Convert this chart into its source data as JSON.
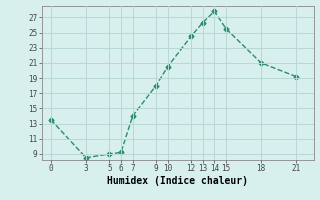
{
  "x": [
    0,
    3,
    5,
    6,
    7,
    9,
    10,
    12,
    13,
    14,
    15,
    18,
    21
  ],
  "y": [
    13.5,
    8.5,
    9.0,
    9.2,
    14.0,
    18.0,
    20.5,
    24.5,
    26.3,
    27.8,
    25.5,
    21.0,
    19.2
  ],
  "xlabel": "Humidex (Indice chaleur)",
  "xticks": [
    0,
    3,
    5,
    6,
    7,
    9,
    10,
    12,
    13,
    14,
    15,
    18,
    21
  ],
  "yticks": [
    9,
    11,
    13,
    15,
    17,
    19,
    21,
    23,
    25,
    27
  ],
  "ylim": [
    8.2,
    28.5
  ],
  "xlim": [
    -0.8,
    22.5
  ],
  "line_color": "#2e8b6e",
  "bg_color": "#d7f0ee",
  "grid_color": "#b8d8d5",
  "markersize": 2.5,
  "linewidth": 1.0
}
